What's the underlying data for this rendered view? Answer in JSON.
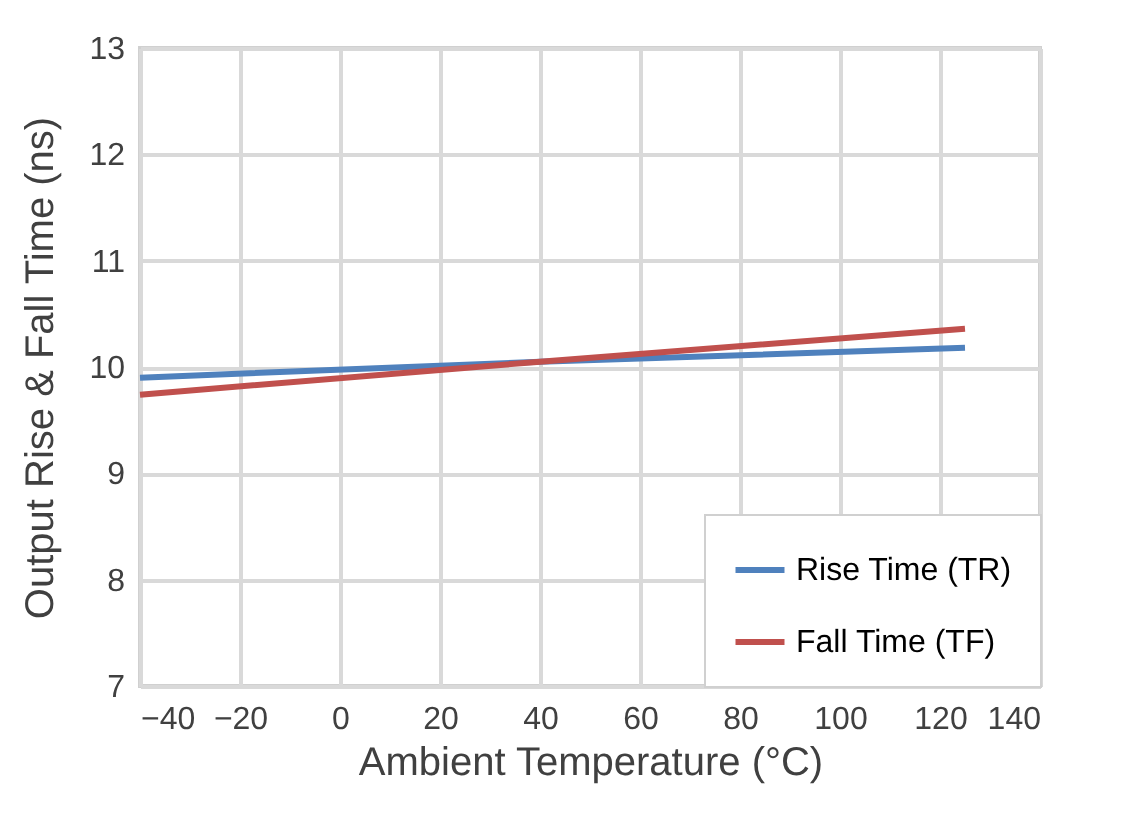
{
  "chart_data": {
    "type": "line",
    "xlabel": "Ambient Temperature (°C)",
    "ylabel": "Output Rise & Fall  Time (ns)",
    "x": [
      -40,
      40,
      125
    ],
    "series": [
      {
        "name": "Rise Time (TR)",
        "color": "#4f81bd",
        "values": [
          9.9,
          10.05,
          10.18
        ]
      },
      {
        "name": "Fall Time (TF)",
        "color": "#c0504d",
        "values": [
          9.74,
          10.05,
          10.36
        ]
      }
    ],
    "xlim": [
      -40,
      140
    ],
    "xticks": [
      -40,
      -20,
      0,
      20,
      40,
      60,
      80,
      100,
      120,
      140
    ],
    "ylim": [
      7,
      13
    ],
    "yticks": [
      7,
      8,
      9,
      10,
      11,
      12,
      13
    ],
    "grid": true,
    "legend": "bottom right",
    "marker": "none",
    "line_style": "solid"
  }
}
